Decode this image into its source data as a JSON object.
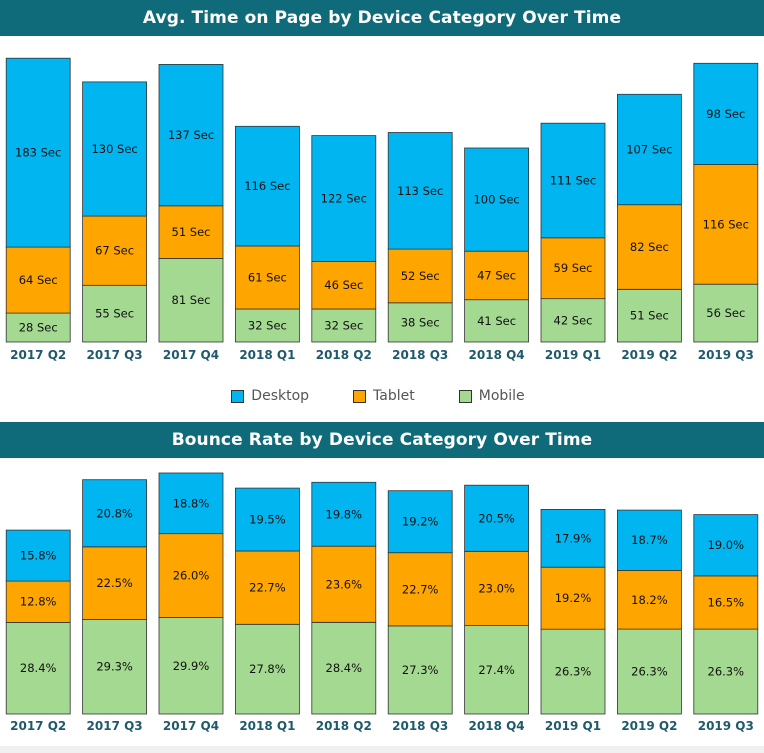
{
  "colors": {
    "header_bg": "#0f6b79",
    "desktop": "#00b5f0",
    "tablet": "#ffa500",
    "mobile": "#a3d991",
    "axis_label": "#1e5a6b"
  },
  "legend": [
    {
      "name": "Desktop",
      "color": "#00b5f0"
    },
    {
      "name": "Tablet",
      "color": "#ffa500"
    },
    {
      "name": "Mobile",
      "color": "#a3d991"
    }
  ],
  "chart_data": [
    {
      "type": "bar",
      "stacked": true,
      "title": "Avg. Time on Page by Device Category Over Time",
      "categories": [
        "2017 Q2",
        "2017 Q3",
        "2017 Q4",
        "2018 Q1",
        "2018 Q2",
        "2018 Q3",
        "2018 Q4",
        "2019 Q1",
        "2019 Q2",
        "2019 Q3"
      ],
      "ylim": [
        0,
        280
      ],
      "grid": false,
      "legend_position": "bottom-center",
      "series": [
        {
          "name": "Mobile",
          "color": "#a3d991",
          "values": [
            28,
            55,
            81,
            32,
            32,
            38,
            41,
            42,
            51,
            56
          ],
          "labels": [
            "28 Sec",
            "55 Sec",
            "81 Sec",
            "32 Sec",
            "32 Sec",
            "38 Sec",
            "41 Sec",
            "42 Sec",
            "51 Sec",
            "56 Sec"
          ]
        },
        {
          "name": "Tablet",
          "color": "#ffa500",
          "values": [
            64,
            67,
            51,
            61,
            46,
            52,
            47,
            59,
            82,
            116
          ],
          "labels": [
            "64 Sec",
            "67 Sec",
            "51 Sec",
            "61 Sec",
            "46 Sec",
            "52 Sec",
            "47 Sec",
            "59 Sec",
            "82 Sec",
            "116 Sec"
          ]
        },
        {
          "name": "Desktop",
          "color": "#00b5f0",
          "values": [
            183,
            130,
            137,
            116,
            122,
            113,
            100,
            111,
            107,
            98
          ],
          "labels": [
            "183 Sec",
            "130 Sec",
            "137 Sec",
            "116 Sec",
            "122 Sec",
            "113 Sec",
            "100 Sec",
            "111 Sec",
            "107 Sec",
            "98 Sec"
          ]
        }
      ]
    },
    {
      "type": "bar",
      "stacked": true,
      "title": "Bounce Rate by Device Category Over Time",
      "categories": [
        "2017 Q2",
        "2017 Q3",
        "2017 Q4",
        "2018 Q1",
        "2018 Q2",
        "2018 Q3",
        "2018 Q4",
        "2019 Q1",
        "2019 Q2",
        "2019 Q3"
      ],
      "ylim": [
        0,
        75
      ],
      "grid": false,
      "series": [
        {
          "name": "Mobile",
          "color": "#a3d991",
          "values": [
            28.4,
            29.3,
            29.9,
            27.8,
            28.4,
            27.3,
            27.4,
            26.3,
            26.3,
            26.3
          ],
          "labels": [
            "28.4%",
            "29.3%",
            "29.9%",
            "27.8%",
            "28.4%",
            "27.3%",
            "27.4%",
            "26.3%",
            "26.3%",
            "26.3%"
          ]
        },
        {
          "name": "Tablet",
          "color": "#ffa500",
          "values": [
            12.8,
            22.5,
            26.0,
            22.7,
            23.6,
            22.7,
            23.0,
            19.2,
            18.2,
            16.5
          ],
          "labels": [
            "12.8%",
            "22.5%",
            "26.0%",
            "22.7%",
            "23.6%",
            "22.7%",
            "23.0%",
            "19.2%",
            "18.2%",
            "16.5%"
          ]
        },
        {
          "name": "Desktop",
          "color": "#00b5f0",
          "values": [
            15.8,
            20.8,
            18.8,
            19.5,
            19.8,
            19.2,
            20.5,
            17.9,
            18.7,
            19.0
          ],
          "labels": [
            "15.8%",
            "20.8%",
            "18.8%",
            "19.5%",
            "19.8%",
            "19.2%",
            "20.5%",
            "17.9%",
            "18.7%",
            "19.0%"
          ]
        }
      ]
    }
  ]
}
